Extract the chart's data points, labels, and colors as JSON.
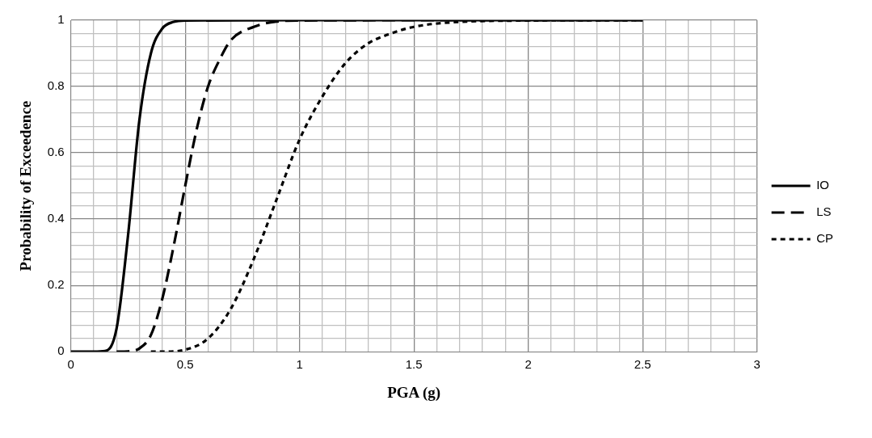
{
  "chart_data": {
    "type": "line",
    "xlabel": "PGA (g)",
    "ylabel": "Probability of Exceedence",
    "xlim": [
      0,
      3
    ],
    "ylim": [
      0,
      1
    ],
    "xticks": [
      0,
      {
        "value": 0.1,
        "label": null
      },
      {
        "value": 0.2,
        "label": null
      },
      {
        "value": 0.3,
        "label": null
      },
      {
        "value": 0.4,
        "label": null
      },
      0.5,
      {
        "value": 0.6,
        "label": null
      },
      {
        "value": 0.7,
        "label": null
      },
      {
        "value": 0.8,
        "label": null
      },
      {
        "value": 0.9,
        "label": null
      },
      1,
      {
        "value": 1.1,
        "label": null
      },
      {
        "value": 1.2,
        "label": null
      },
      {
        "value": 1.3,
        "label": null
      },
      {
        "value": 1.4,
        "label": null
      },
      1.5,
      {
        "value": 1.6,
        "label": null
      },
      {
        "value": 1.7,
        "label": null
      },
      {
        "value": 1.8,
        "label": null
      },
      {
        "value": 1.9,
        "label": null
      },
      2,
      {
        "value": 2.1,
        "label": null
      },
      {
        "value": 2.2,
        "label": null
      },
      {
        "value": 2.3,
        "label": null
      },
      {
        "value": 2.4,
        "label": null
      },
      2.5,
      {
        "value": 2.6,
        "label": null
      },
      {
        "value": 2.7,
        "label": null
      },
      {
        "value": 2.8,
        "label": null
      },
      {
        "value": 2.9,
        "label": null
      },
      3
    ],
    "yticks": [
      0,
      {
        "value": 0.04,
        "label": null
      },
      {
        "value": 0.08,
        "label": null
      },
      {
        "value": 0.12,
        "label": null
      },
      {
        "value": 0.16,
        "label": null
      },
      0.2,
      {
        "value": 0.24,
        "label": null
      },
      {
        "value": 0.28,
        "label": null
      },
      {
        "value": 0.32,
        "label": null
      },
      {
        "value": 0.36,
        "label": null
      },
      0.4,
      {
        "value": 0.44,
        "label": null
      },
      {
        "value": 0.48,
        "label": null
      },
      {
        "value": 0.52,
        "label": null
      },
      {
        "value": 0.56,
        "label": null
      },
      0.6,
      {
        "value": 0.64,
        "label": null
      },
      {
        "value": 0.68,
        "label": null
      },
      {
        "value": 0.72,
        "label": null
      },
      {
        "value": 0.76,
        "label": null
      },
      0.8,
      {
        "value": 0.84,
        "label": null
      },
      {
        "value": 0.88,
        "label": null
      },
      {
        "value": 0.92,
        "label": null
      },
      {
        "value": 0.96,
        "label": null
      },
      1
    ],
    "grid": true,
    "legend": "right",
    "marker": "none",
    "series": [
      {
        "name": "IO",
        "color": "#000000",
        "line_style": "solid",
        "x": [
          0,
          0.1,
          0.15,
          0.2,
          0.25,
          0.3,
          0.35,
          0.4,
          0.45,
          0.5,
          1,
          1.5,
          2,
          2.5
        ],
        "values": [
          0,
          0,
          0.002,
          0.07,
          0.35,
          0.7,
          0.9,
          0.975,
          0.995,
          0.999,
          1,
          1,
          1,
          1
        ]
      },
      {
        "name": "LS",
        "color": "#000000",
        "line_style": "dashed",
        "x": [
          0.2,
          0.25,
          0.3,
          0.35,
          0.4,
          0.45,
          0.5,
          0.55,
          0.6,
          0.65,
          0.7,
          0.8,
          0.9,
          1,
          1.5,
          2,
          2.5
        ],
        "values": [
          0,
          0.001,
          0.01,
          0.05,
          0.16,
          0.32,
          0.5,
          0.67,
          0.8,
          0.88,
          0.94,
          0.98,
          0.996,
          0.999,
          1,
          1,
          1
        ]
      },
      {
        "name": "CP",
        "color": "#000000",
        "line_style": "dotted",
        "x": [
          0.35,
          0.4,
          0.5,
          0.6,
          0.7,
          0.8,
          0.9,
          1,
          1.1,
          1.2,
          1.3,
          1.4,
          1.5,
          1.7,
          2,
          2.5
        ],
        "values": [
          0,
          0,
          0.006,
          0.04,
          0.13,
          0.28,
          0.46,
          0.64,
          0.77,
          0.87,
          0.93,
          0.96,
          0.98,
          0.995,
          0.999,
          1
        ]
      }
    ]
  }
}
